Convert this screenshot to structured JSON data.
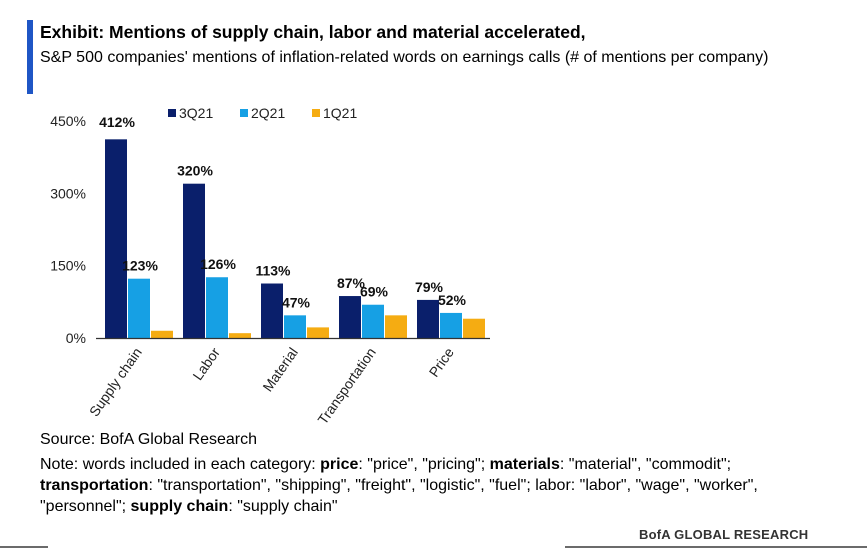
{
  "header": {
    "title": "Exhibit: Mentions of supply chain, labor and material accelerated,",
    "subtitle": "S&P 500 companies' mentions of inflation-related words on earnings calls (# of mentions per company)"
  },
  "colors": {
    "accent": "#1f56c5",
    "series": [
      "#0a1f6b",
      "#16a0e4",
      "#f5ac12"
    ],
    "axis": "#333333"
  },
  "chart_data": {
    "type": "bar",
    "categories": [
      "Supply chain",
      "Labor",
      "Material",
      "Transportation",
      "Price"
    ],
    "series": [
      {
        "name": "3Q21",
        "values": [
          412,
          320,
          113,
          87,
          79
        ]
      },
      {
        "name": "2Q21",
        "values": [
          123,
          126,
          47,
          69,
          52
        ]
      },
      {
        "name": "1Q21",
        "values": [
          15,
          10,
          22,
          47,
          40
        ]
      }
    ],
    "data_labels": [
      [
        "412%",
        "123%",
        ""
      ],
      [
        "320%",
        "126%",
        ""
      ],
      [
        "113%",
        "47%",
        ""
      ],
      [
        "87%",
        "69%",
        ""
      ],
      [
        "79%",
        "52%",
        ""
      ]
    ],
    "yticks": [
      0,
      150,
      300,
      450
    ],
    "ytick_labels": [
      "0%",
      "150%",
      "300%",
      "450%"
    ],
    "ylim": [
      0,
      450
    ],
    "legend_position": "top",
    "grid": false
  },
  "footer": {
    "source": "Source: BofA Global Research",
    "note_runs": [
      {
        "text": "Note: words included in each category: ",
        "bold": false
      },
      {
        "text": "price",
        "bold": true
      },
      {
        "text": ": \"price\", \"pricing\"; ",
        "bold": false
      },
      {
        "text": "materials",
        "bold": true
      },
      {
        "text": ": \"material\", \"commodit\"; ",
        "bold": false
      },
      {
        "text": "transportation",
        "bold": true
      },
      {
        "text": ": \"transportation\", \"shipping\", \"freight\", \"logistic\", \"fuel\"; labor: \"labor\", \"wage\", \"worker\", \"personnel\"; ",
        "bold": false
      },
      {
        "text": "supply chain",
        "bold": true
      },
      {
        "text": ": \"supply chain\"",
        "bold": false
      }
    ],
    "brand": "BofA GLOBAL RESEARCH"
  }
}
